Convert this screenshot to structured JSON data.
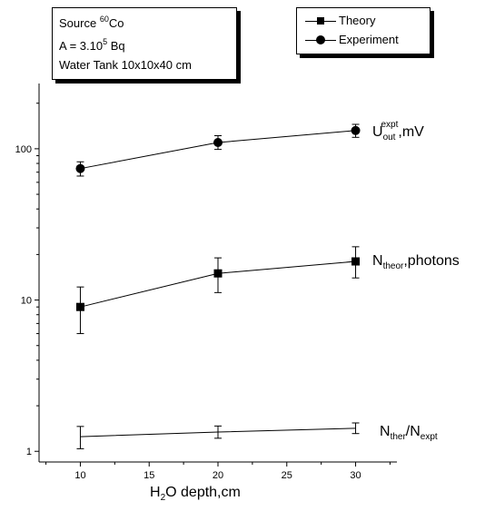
{
  "info_box": {
    "line1_prefix": "Source ",
    "line1_sup": "60",
    "line1_suffix": "Co",
    "line2_prefix": "A = 3.10",
    "line2_sup": "5",
    "line2_suffix": " Bq",
    "line3": "Water Tank 10x10x40 cm"
  },
  "legend": {
    "theory": "Theory",
    "experiment": "Experiment"
  },
  "labels": {
    "u_out_main": "U",
    "u_out_sub": "out",
    "u_out_sup": "expt",
    "u_out_tail": ",mV",
    "n_theor_main": "N",
    "n_theor_sub": "theor",
    "n_theor_tail": ",photons",
    "ratio_main1": "N",
    "ratio_sub1": "ther",
    "ratio_slash": "/N",
    "ratio_sub2": "expt"
  },
  "x_title": {
    "prefix": "H",
    "sub": "2",
    "suffix": "O depth,cm"
  },
  "chart_data": {
    "type": "line",
    "xlabel": "H2O depth,cm",
    "ylabel": "",
    "x_ticks": [
      "10",
      "15",
      "20",
      "25",
      "30"
    ],
    "y_ticks": [
      "1",
      "10",
      "100"
    ],
    "yscale": "log",
    "xlim": [
      7,
      33
    ],
    "ylim": [
      0.85,
      270
    ],
    "series": [
      {
        "name": "Experiment",
        "marker": "circle",
        "x": [
          10,
          20,
          30
        ],
        "y": [
          74,
          110,
          132
        ],
        "y_err_low": [
          66,
          99,
          119
        ],
        "y_err_high": [
          82,
          122,
          145
        ]
      },
      {
        "name": "Theory",
        "marker": "square",
        "x": [
          10,
          20,
          30
        ],
        "y": [
          9,
          15,
          18
        ],
        "y_err_low": [
          6,
          11.2,
          14
        ],
        "y_err_high": [
          12.2,
          19,
          22.5
        ]
      },
      {
        "marker": "none",
        "x": [
          10,
          20,
          30
        ],
        "y": [
          1.25,
          1.34,
          1.42
        ],
        "y_err_low": [
          1.04,
          1.22,
          1.31
        ],
        "y_err_high": [
          1.46,
          1.47,
          1.54
        ]
      }
    ]
  }
}
